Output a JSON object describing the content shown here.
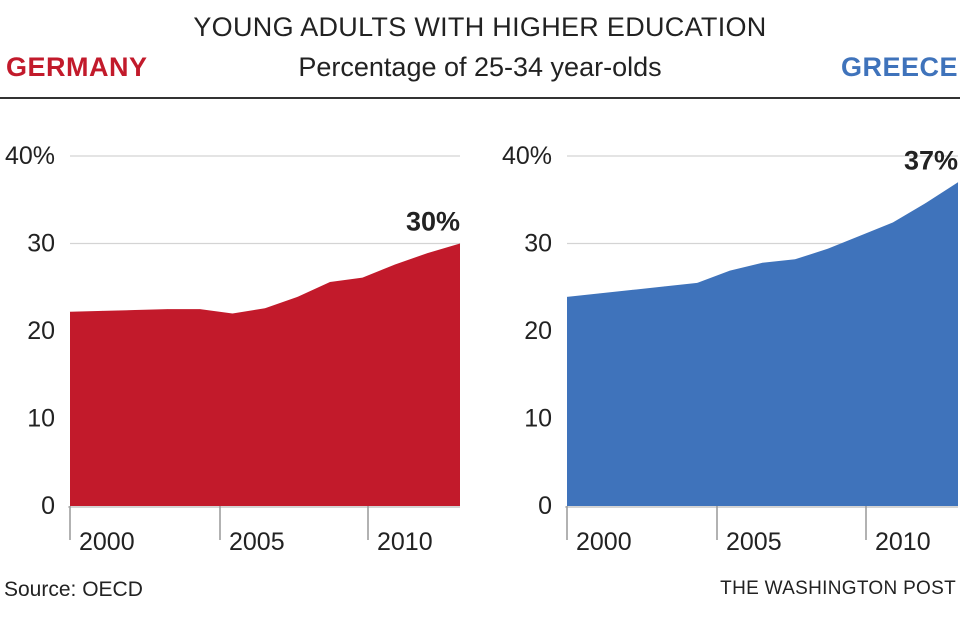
{
  "header": {
    "title": "YOUNG ADULTS WITH HIGHER EDUCATION",
    "subtitle": "Percentage of 25-34 year-olds"
  },
  "footer": {
    "source": "Source: OECD",
    "credit": "THE WASHINGTON POST"
  },
  "chart_data": [
    {
      "type": "area",
      "name": "germany",
      "title": "GERMANY",
      "color": "#c21a2b",
      "x": [
        2000,
        2001,
        2002,
        2003,
        2004,
        2005,
        2006,
        2007,
        2008,
        2009,
        2010,
        2011,
        2012
      ],
      "values": [
        22.2,
        22.3,
        22.4,
        22.5,
        22.5,
        22.0,
        22.6,
        23.9,
        25.6,
        26.1,
        27.6,
        28.9,
        30.0
      ],
      "ylim": [
        0,
        40
      ],
      "y_ticks": [
        0,
        10,
        20,
        30,
        40
      ],
      "y_tick_labels": [
        "0",
        "10",
        "20",
        "30",
        "40%"
      ],
      "x_ticks": [
        2000,
        2005,
        2010
      ],
      "x_tick_labels": [
        "2000",
        "2005",
        "2010"
      ],
      "end_label": "30%"
    },
    {
      "type": "area",
      "name": "greece",
      "title": "GREECE",
      "color": "#3f73bb",
      "x": [
        2000,
        2001,
        2002,
        2003,
        2004,
        2005,
        2006,
        2007,
        2008,
        2009,
        2010,
        2011,
        2012
      ],
      "values": [
        23.9,
        24.3,
        24.7,
        25.1,
        25.5,
        26.9,
        27.8,
        28.2,
        29.4,
        30.9,
        32.4,
        34.6,
        37.0
      ],
      "ylim": [
        0,
        40
      ],
      "y_ticks": [
        0,
        10,
        20,
        30,
        40
      ],
      "y_tick_labels": [
        "0",
        "10",
        "20",
        "30",
        "40%"
      ],
      "x_ticks": [
        2000,
        2005,
        2010
      ],
      "x_tick_labels": [
        "2000",
        "2005",
        "2010"
      ],
      "end_label": "37%"
    }
  ]
}
